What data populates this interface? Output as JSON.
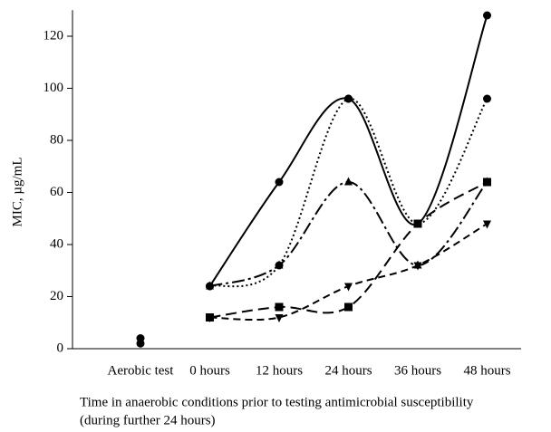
{
  "chart_data": {
    "type": "line",
    "y_label": "MIC, µg/mL",
    "x_label_lines": [
      "Time in anaerobic conditions prior to testing antimicrobial susceptibility",
      "(during further 24 hours)"
    ],
    "categories": [
      "Aerobic test",
      "0 hours",
      "12 hours",
      "24 hours",
      "36 hours",
      "48 hours"
    ],
    "ylim": [
      0,
      130
    ],
    "yticks": [
      0,
      20,
      40,
      60,
      80,
      100,
      120
    ],
    "smooth": true,
    "series": [
      {
        "color": "#000000",
        "marker": "circle",
        "dash": "solid",
        "values": [
          null,
          24,
          64,
          96,
          48,
          128
        ]
      },
      {
        "color": "#000000",
        "marker": "circle",
        "dash": "dotted",
        "values": [
          null,
          24,
          32,
          96,
          48,
          96
        ]
      },
      {
        "color": "#000000",
        "marker": "triangle",
        "dash": "dashdot",
        "values": [
          null,
          24,
          32,
          64,
          32,
          64
        ]
      },
      {
        "color": "#000000",
        "marker": "square",
        "dash": "longdash",
        "values": [
          null,
          12,
          16,
          16,
          48,
          64
        ]
      },
      {
        "color": "#000000",
        "marker": "triangle-down",
        "dash": "dash",
        "values": [
          null,
          12,
          12,
          24,
          32,
          48
        ]
      },
      {
        "color": "#000000",
        "marker": "circle",
        "dash": "none",
        "values": [
          4,
          null,
          null,
          null,
          null,
          null
        ]
      },
      {
        "color": "#000000",
        "marker": "circle",
        "dash": "none",
        "values": [
          2,
          null,
          null,
          null,
          null,
          null
        ]
      }
    ]
  }
}
